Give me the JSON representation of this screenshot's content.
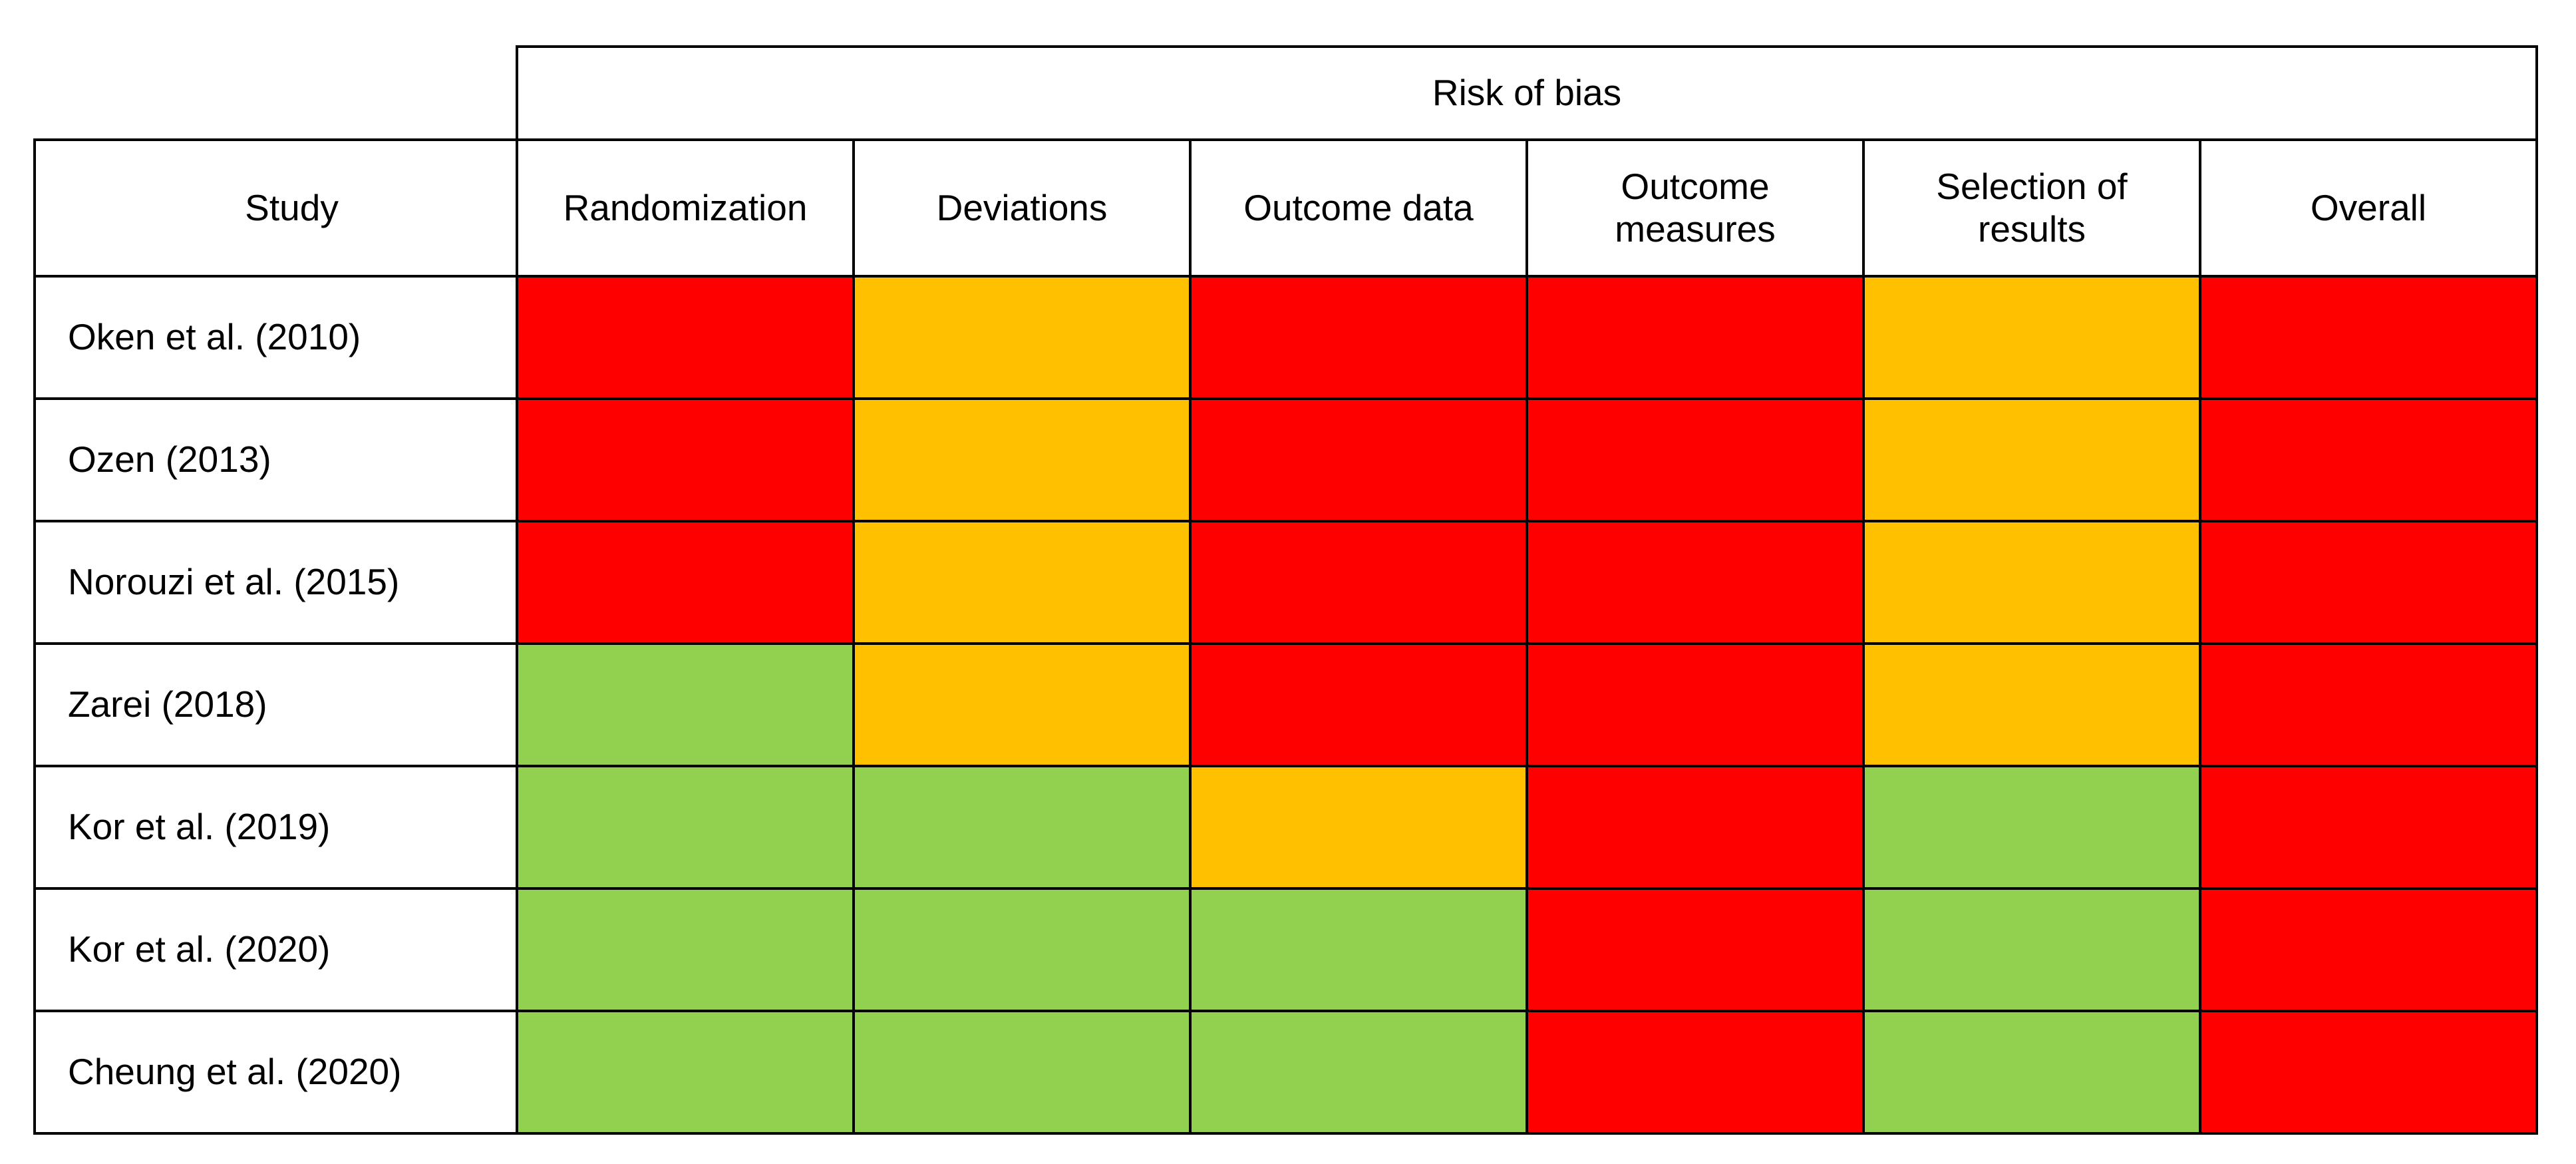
{
  "figure": {
    "title": "Risk of bias"
  },
  "table": {
    "spanner_label": "Risk of bias",
    "columns": [
      "Study",
      "Randomization",
      "Deviations",
      "Outcome data",
      "Outcome\nmeasures",
      "Selection of\nresults",
      "Overall"
    ],
    "rows": [
      {
        "study": "Oken et al. (2010)",
        "ratings": [
          "high",
          "some",
          "high",
          "high",
          "some",
          "high"
        ]
      },
      {
        "study": "Ozen (2013)",
        "ratings": [
          "high",
          "some",
          "high",
          "high",
          "some",
          "high"
        ]
      },
      {
        "study": "Norouzi et al. (2015)",
        "ratings": [
          "high",
          "some",
          "high",
          "high",
          "some",
          "high"
        ]
      },
      {
        "study": "Zarei (2018)",
        "ratings": [
          "low",
          "some",
          "high",
          "high",
          "some",
          "high"
        ]
      },
      {
        "study": "Kor et al. (2019)",
        "ratings": [
          "low",
          "low",
          "some",
          "high",
          "low",
          "high"
        ]
      },
      {
        "study": "Kor et al. (2020)",
        "ratings": [
          "low",
          "low",
          "low",
          "high",
          "low",
          "high"
        ]
      },
      {
        "study": "Cheung et al. (2020)",
        "ratings": [
          "low",
          "low",
          "low",
          "high",
          "low",
          "high"
        ]
      }
    ],
    "rating_colors": {
      "high": "#FF0000",
      "some": "#FFC000",
      "low": "#92D050"
    }
  },
  "chart_data": {
    "type": "heatmap",
    "title": "Risk of bias",
    "x_categories": [
      "Randomization",
      "Deviations",
      "Outcome data",
      "Outcome measures",
      "Selection of results",
      "Overall"
    ],
    "y_categories": [
      "Oken et al. (2010)",
      "Ozen (2013)",
      "Norouzi et al. (2015)",
      "Zarei (2018)",
      "Kor et al. (2019)",
      "Kor et al. (2020)",
      "Cheung et al. (2020)"
    ],
    "values": [
      [
        "high risk",
        "some concerns",
        "high risk",
        "high risk",
        "some concerns",
        "high risk"
      ],
      [
        "high risk",
        "some concerns",
        "high risk",
        "high risk",
        "some concerns",
        "high risk"
      ],
      [
        "high risk",
        "some concerns",
        "high risk",
        "high risk",
        "some concerns",
        "high risk"
      ],
      [
        "low risk",
        "some concerns",
        "high risk",
        "high risk",
        "some concerns",
        "high risk"
      ],
      [
        "low risk",
        "low risk",
        "some concerns",
        "high risk",
        "low risk",
        "high risk"
      ],
      [
        "low risk",
        "low risk",
        "low risk",
        "high risk",
        "low risk",
        "high risk"
      ],
      [
        "low risk",
        "low risk",
        "low risk",
        "high risk",
        "low risk",
        "high risk"
      ]
    ],
    "value_colors": {
      "high risk": "#FF0000",
      "some concerns": "#FFC000",
      "low risk": "#92D050"
    },
    "legend": "none",
    "grid": "on"
  }
}
